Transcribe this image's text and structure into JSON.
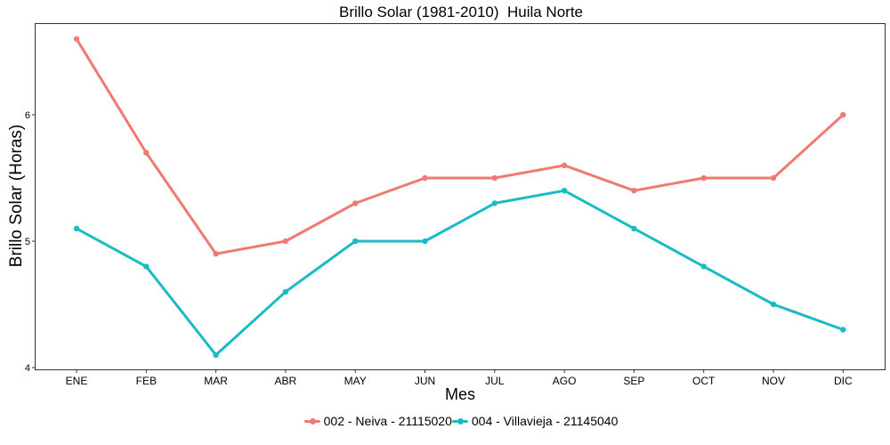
{
  "chart_data": {
    "type": "line",
    "title": "Brillo Solar (1981-2010)  Huila Norte",
    "xlabel": "Mes",
    "ylabel": "Brillo Solar (Horas)",
    "categories": [
      "ENE",
      "FEB",
      "MAR",
      "ABR",
      "MAY",
      "JUN",
      "JUL",
      "AGO",
      "SEP",
      "OCT",
      "NOV",
      "DIC"
    ],
    "ylim": [
      4,
      6.7
    ],
    "yticks": [
      "4",
      "5",
      "6"
    ],
    "grid": false,
    "legend_position": "bottom",
    "series": [
      {
        "name": "002 - Neiva - 21115020",
        "color": "#F07A70",
        "values": [
          6.6,
          5.7,
          4.9,
          5.0,
          5.3,
          5.5,
          5.5,
          5.6,
          5.4,
          5.5,
          5.5,
          6.0
        ]
      },
      {
        "name": "004 - Villavieja - 21145040",
        "color": "#1ABBC4",
        "values": [
          5.1,
          4.8,
          4.1,
          4.6,
          5.0,
          5.0,
          5.3,
          5.4,
          5.1,
          4.8,
          4.5,
          4.3
        ]
      }
    ]
  }
}
